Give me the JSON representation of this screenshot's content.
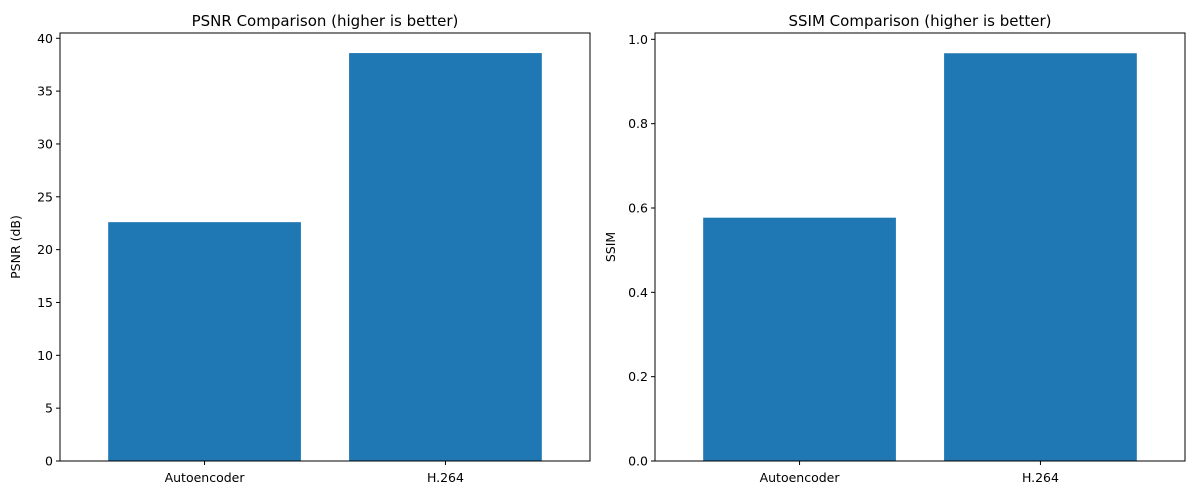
{
  "chart_data": [
    {
      "type": "bar",
      "title": "PSNR Comparison (higher is better)",
      "xlabel": "",
      "ylabel": "PSNR (dB)",
      "categories": [
        "Autoencoder",
        "H.264"
      ],
      "values": [
        22.6,
        38.6
      ],
      "ylim": [
        0,
        40.5
      ],
      "yticks": [
        0,
        5,
        10,
        15,
        20,
        25,
        30,
        35,
        40
      ],
      "ytick_labels": [
        "0",
        "5",
        "10",
        "15",
        "20",
        "25",
        "30",
        "35",
        "40"
      ],
      "grid": false,
      "bar_color": "#1f77b4"
    },
    {
      "type": "bar",
      "title": "SSIM Comparison (higher is better)",
      "xlabel": "",
      "ylabel": "SSIM",
      "categories": [
        "Autoencoder",
        "H.264"
      ],
      "values": [
        0.577,
        0.967
      ],
      "ylim": [
        0,
        1.015
      ],
      "yticks": [
        0,
        0.2,
        0.4,
        0.6,
        0.8,
        1.0
      ],
      "ytick_labels": [
        "0.0",
        "0.2",
        "0.4",
        "0.6",
        "0.8",
        "1.0"
      ],
      "grid": false,
      "bar_color": "#1f77b4"
    }
  ]
}
